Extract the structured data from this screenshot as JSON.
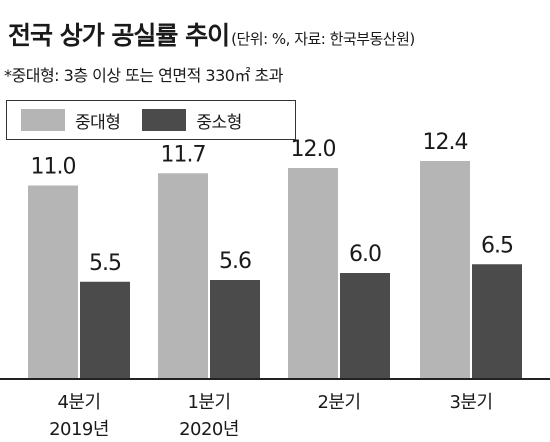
{
  "title": "전국 상가 공실률 추이",
  "subtitle": "(단위: %, 자료: 한국부동산원)",
  "note": "*중대형: 3층 이상 또는 연면적 330㎡ 초과",
  "colors": {
    "large": "#b5b5b5",
    "small": "#4b4b4b",
    "axis": "#222222"
  },
  "chart_data": {
    "type": "bar",
    "title": "전국 상가 공실률 추이",
    "unit": "%",
    "source": "한국부동산원",
    "categories": [
      [
        "4분기",
        "2019년"
      ],
      [
        "1분기",
        "2020년"
      ],
      [
        "2분기",
        ""
      ],
      [
        "3분기",
        ""
      ]
    ],
    "series": [
      {
        "name": "중대형",
        "values": [
          11.0,
          11.7,
          12.0,
          12.4
        ]
      },
      {
        "name": "중소형",
        "values": [
          5.5,
          5.6,
          6.0,
          6.5
        ]
      }
    ],
    "ylim": [
      0,
      14
    ],
    "grid": false,
    "legend": "top-left"
  }
}
